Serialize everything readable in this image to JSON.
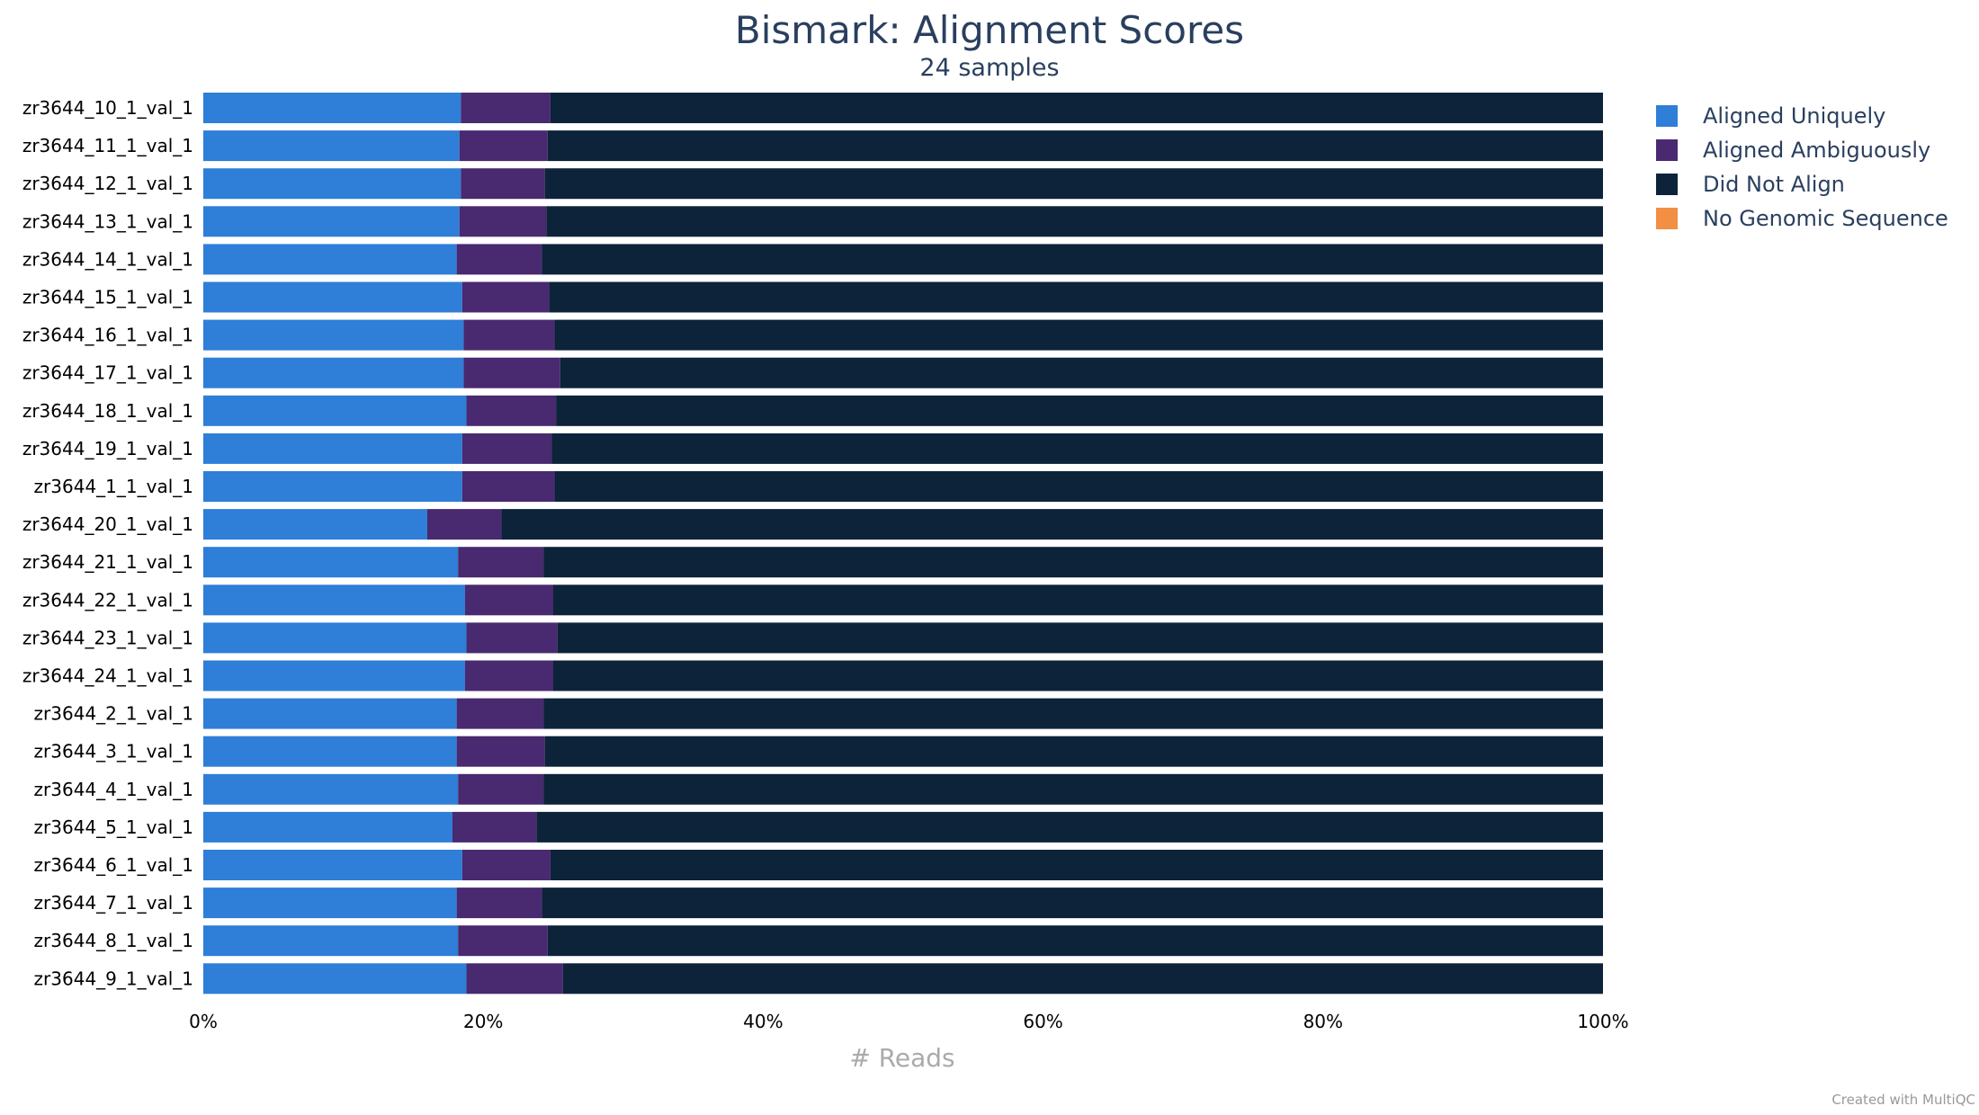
{
  "chart_data": {
    "type": "bar",
    "orientation": "horizontal",
    "stacked": "percent",
    "title": "Bismark: Alignment Scores",
    "subtitle": "24 samples",
    "xlabel": "# Reads",
    "ylabel": "",
    "xlim": [
      0,
      100
    ],
    "x_ticks": [
      "0%",
      "20%",
      "40%",
      "60%",
      "80%",
      "100%"
    ],
    "grid": false,
    "legend_position": "right",
    "credit": "Created with MultiQC",
    "categories": [
      "zr3644_10_1_val_1",
      "zr3644_11_1_val_1",
      "zr3644_12_1_val_1",
      "zr3644_13_1_val_1",
      "zr3644_14_1_val_1",
      "zr3644_15_1_val_1",
      "zr3644_16_1_val_1",
      "zr3644_17_1_val_1",
      "zr3644_18_1_val_1",
      "zr3644_19_1_val_1",
      "zr3644_1_1_val_1",
      "zr3644_20_1_val_1",
      "zr3644_21_1_val_1",
      "zr3644_22_1_val_1",
      "zr3644_23_1_val_1",
      "zr3644_24_1_val_1",
      "zr3644_2_1_val_1",
      "zr3644_3_1_val_1",
      "zr3644_4_1_val_1",
      "zr3644_5_1_val_1",
      "zr3644_6_1_val_1",
      "zr3644_7_1_val_1",
      "zr3644_8_1_val_1",
      "zr3644_9_1_val_1"
    ],
    "series": [
      {
        "name": "Aligned Uniquely",
        "color": "#2f7ed8",
        "values": [
          18.4,
          18.3,
          18.4,
          18.3,
          18.1,
          18.5,
          18.6,
          18.6,
          18.8,
          18.5,
          18.5,
          16.0,
          18.2,
          18.7,
          18.8,
          18.7,
          18.1,
          18.1,
          18.2,
          17.8,
          18.5,
          18.1,
          18.2,
          18.8
        ]
      },
      {
        "name": "Aligned Ambiguously",
        "color": "#492970",
        "values": [
          6.4,
          6.3,
          6.0,
          6.2,
          6.1,
          6.2,
          6.5,
          6.9,
          6.4,
          6.4,
          6.6,
          5.3,
          6.1,
          6.3,
          6.5,
          6.3,
          6.2,
          6.3,
          6.1,
          6.0,
          6.3,
          6.1,
          6.4,
          6.9
        ]
      },
      {
        "name": "Did Not Align",
        "color": "#0d233a",
        "values": [
          75.2,
          75.4,
          75.6,
          75.5,
          75.8,
          75.3,
          74.9,
          74.5,
          74.8,
          75.1,
          74.9,
          78.7,
          75.7,
          75.0,
          74.7,
          75.0,
          75.7,
          75.6,
          75.7,
          76.2,
          75.2,
          75.8,
          75.4,
          74.3
        ]
      },
      {
        "name": "No Genomic Sequence",
        "color": "#f28f43",
        "values": [
          0,
          0,
          0,
          0,
          0,
          0,
          0,
          0,
          0,
          0,
          0,
          0,
          0,
          0,
          0,
          0,
          0,
          0,
          0,
          0,
          0,
          0,
          0,
          0
        ]
      }
    ]
  }
}
